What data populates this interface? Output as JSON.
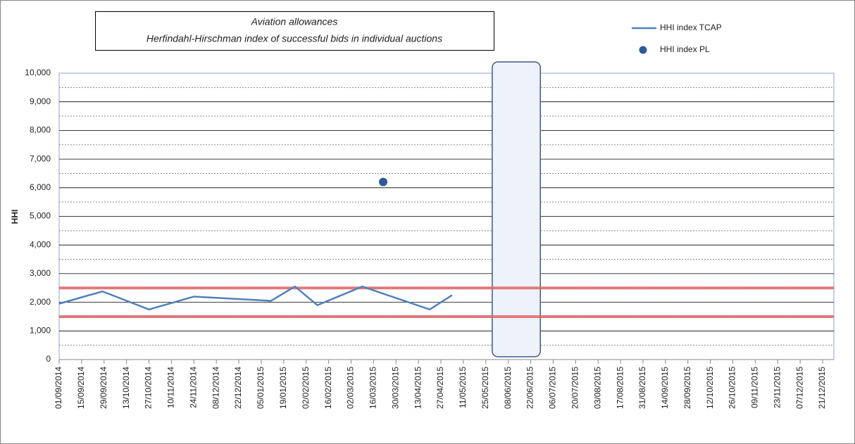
{
  "chart_data": {
    "type": "line",
    "title": "Aviation allowances",
    "subtitle": "Herfindahl-Hirschman index of successful bids in individual auctions",
    "y_label": "HHI",
    "series": [
      {
        "name": "HHI index TCAP",
        "type": "line",
        "color": "#4f81bd",
        "x": [
          "01/09/2014",
          "28/09/2014",
          "27/10/2014",
          "24/11/2014",
          "11/01/2015",
          "26/01/2015",
          "09/02/2015",
          "09/03/2015",
          "20/04/2015",
          "04/05/2015"
        ],
        "values": [
          1950,
          2380,
          1750,
          2200,
          2050,
          2550,
          1900,
          2550,
          1750,
          2250
        ]
      },
      {
        "name": "HHI index PL",
        "type": "scatter",
        "color": "#2e5a99",
        "x": [
          "22/03/2015"
        ],
        "values": [
          6200
        ]
      }
    ],
    "reference_lines": {
      "values": [
        1500,
        2500
      ],
      "color": "#e06666"
    },
    "highlight": {
      "x": [
        "29/05/2015",
        "28/06/2015"
      ],
      "color": "#eef2fa",
      "border": "#3c5a8c"
    },
    "xlim": [
      "01/09/2014",
      "28/12/2015"
    ],
    "xticks": [
      "01/09/2014",
      "15/09/2014",
      "29/09/2014",
      "13/10/2014",
      "27/10/2014",
      "10/11/2014",
      "24/11/2014",
      "08/12/2014",
      "22/12/2014",
      "05/01/2015",
      "19/01/2015",
      "02/02/2015",
      "16/02/2015",
      "02/03/2015",
      "16/03/2015",
      "30/03/2015",
      "13/04/2015",
      "27/04/2015",
      "11/05/2015",
      "25/05/2015",
      "08/06/2015",
      "22/06/2015",
      "06/07/2015",
      "20/07/2015",
      "03/08/2015",
      "17/08/2015",
      "31/08/2015",
      "14/09/2015",
      "28/09/2015",
      "12/10/2015",
      "26/10/2015",
      "09/11/2015",
      "23/11/2015",
      "07/12/2015",
      "21/12/2015"
    ],
    "ylim": [
      0,
      10000
    ],
    "yticks": [
      0,
      {
        "value": 1000,
        "label": "1,000"
      },
      {
        "value": 2000,
        "label": "2,000"
      },
      {
        "value": 3000,
        "label": "3,000"
      },
      {
        "value": 4000,
        "label": "4,000"
      },
      {
        "value": 5000,
        "label": "5,000"
      },
      {
        "value": 6000,
        "label": "6,000"
      },
      {
        "value": 7000,
        "label": "7,000"
      },
      {
        "value": 8000,
        "label": "8,000"
      },
      {
        "value": 9000,
        "label": "9,000"
      },
      {
        "value": 10000,
        "label": "10,000"
      }
    ],
    "minor_yticks": [
      500,
      1500,
      2500,
      3500,
      4500,
      5500,
      6500,
      7500,
      8500,
      9500
    ],
    "grid": true
  }
}
